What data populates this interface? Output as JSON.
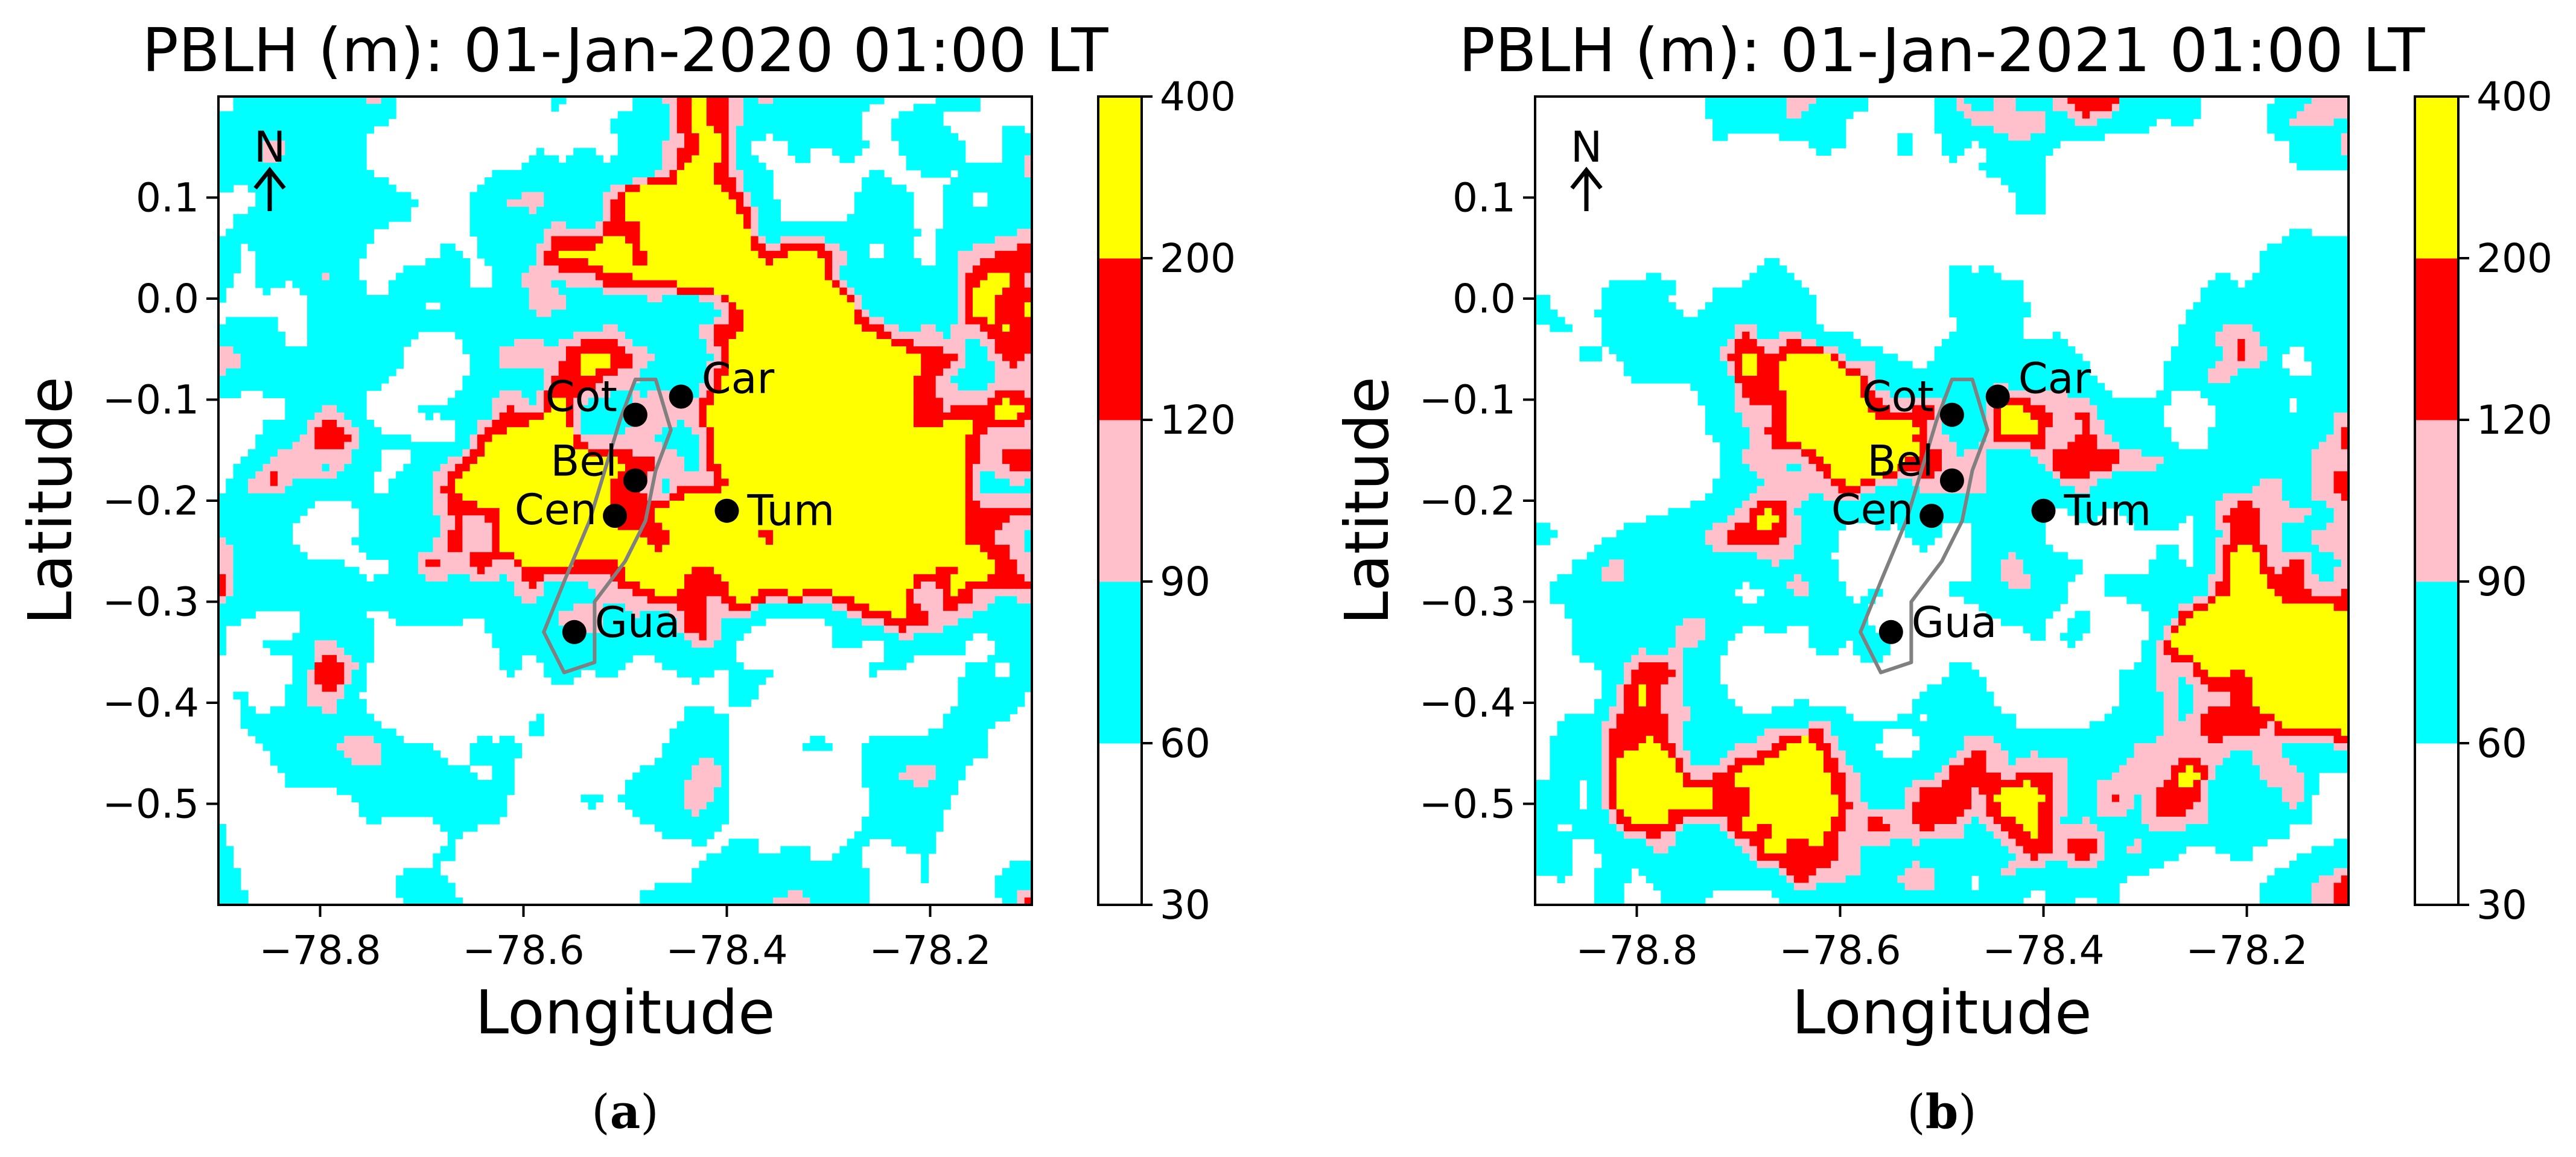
{
  "figure": {
    "panels": [
      {
        "id": "a",
        "label": "a",
        "title": "PBLH (m): 01-Jan-2020 01:00 LT",
        "north_label": "N",
        "xlabel": "Longitude",
        "ylabel": "Latitude",
        "seed": 11
      },
      {
        "id": "b",
        "label": "b",
        "title": "PBLH (m): 01-Jan-2021 01:00 LT",
        "north_label": "N",
        "xlabel": "Longitude",
        "ylabel": "Latitude",
        "seed": 29
      }
    ]
  },
  "chart_data": {
    "type": "contour-map",
    "variable": "PBLH (m)",
    "xlim": [
      -78.9,
      -78.1
    ],
    "ylim": [
      -0.6,
      0.2
    ],
    "xticks": [
      -78.8,
      -78.6,
      -78.4,
      -78.2
    ],
    "xtick_labels": [
      "−78.8",
      "−78.6",
      "−78.4",
      "−78.2"
    ],
    "yticks": [
      0.1,
      0.0,
      -0.1,
      -0.2,
      -0.3,
      -0.4,
      -0.5
    ],
    "ytick_labels": [
      "0.1",
      "0.0",
      "−0.1",
      "−0.2",
      "−0.3",
      "−0.4",
      "−0.5"
    ],
    "colorbar": {
      "levels": [
        30,
        60,
        90,
        120,
        200,
        400
      ],
      "level_labels": [
        "30",
        "60",
        "90",
        "120",
        "200",
        "400"
      ],
      "colors": [
        "#ffffff",
        "#00ffff",
        "#ffc0cb",
        "#ff0000",
        "#ffff00"
      ]
    },
    "stations": [
      {
        "name": "Cot",
        "lon": -78.49,
        "lat": -0.115
      },
      {
        "name": "Car",
        "lon": -78.445,
        "lat": -0.097
      },
      {
        "name": "Bel",
        "lon": -78.49,
        "lat": -0.18
      },
      {
        "name": "Cen",
        "lon": -78.51,
        "lat": -0.215
      },
      {
        "name": "Tum",
        "lon": -78.4,
        "lat": -0.21
      },
      {
        "name": "Gua",
        "lon": -78.55,
        "lat": -0.33
      }
    ]
  }
}
